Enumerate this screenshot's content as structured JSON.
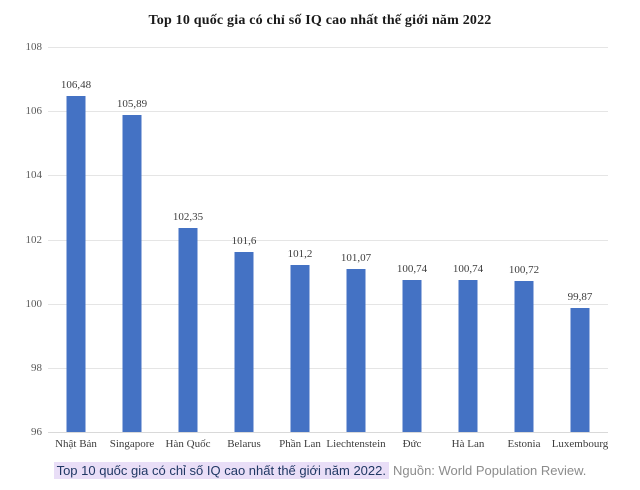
{
  "chart_data": {
    "type": "bar",
    "title": "Top 10 quốc gia có chỉ số IQ cao nhất thế giới năm 2022",
    "categories": [
      "Nhật Bản",
      "Singapore",
      "Hàn Quốc",
      "Belarus",
      "Phần Lan",
      "Liechtenstein",
      "Đức",
      "Hà Lan",
      "Estonia",
      "Luxembourg"
    ],
    "values": [
      106.48,
      105.89,
      102.35,
      101.6,
      101.2,
      101.07,
      100.74,
      100.74,
      100.72,
      99.87
    ],
    "value_labels": [
      "106,48",
      "105,89",
      "102,35",
      "101,6",
      "101,2",
      "101,07",
      "100,74",
      "100,74",
      "100,72",
      "99,87"
    ],
    "xlabel": "",
    "ylabel": "",
    "ylim": [
      96,
      108
    ],
    "yticks": [
      96,
      98,
      100,
      102,
      104,
      106,
      108
    ],
    "grid": true,
    "legend": false,
    "bar_color": "#4472C4"
  },
  "caption": {
    "highlighted_text": "Top 10 quốc gia có chỉ số IQ cao nhất thế giới năm 2022.",
    "source_text": "Nguồn: World Population Review.",
    "highlight_color": "#E9DEF7",
    "highlight_text_color": "#203864",
    "source_text_color": "#8c8c8c"
  },
  "colors": {
    "bar": "#4472C4",
    "gridline": "#e5e5e5",
    "axis_text": "#595959",
    "data_label": "#3d3d3d",
    "title_text": "#1a1a1a",
    "background": "#ffffff"
  }
}
